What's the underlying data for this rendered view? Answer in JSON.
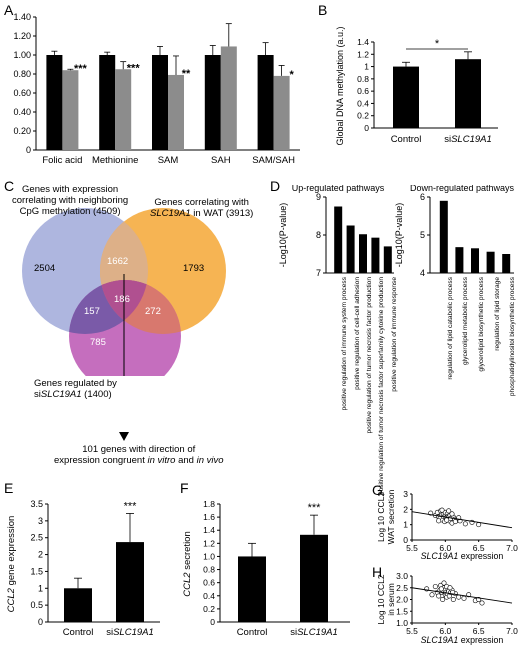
{
  "panel_labels": [
    "A",
    "B",
    "C",
    "D",
    "E",
    "F",
    "G",
    "H"
  ],
  "colors": {
    "black_bar": "#000000",
    "gray_bar": "#8c8c8c",
    "axis": "#000000",
    "venn_blue": "#aeb6df",
    "venn_orange": "#f6b04a",
    "venn_purple": "#c266ba",
    "venn_blue_orange": "#ddb088",
    "venn_blue_purple": "#7a5aa8",
    "venn_orange_purple": "#d8786e",
    "venn_center": "#b05090"
  },
  "chart_data": [
    {
      "id": "A",
      "type": "bar",
      "categories": [
        "Folic acid",
        "Methionine",
        "SAM",
        "SAH",
        "SAM/SAH"
      ],
      "series": [
        {
          "values": [
            1.0,
            1.0,
            1.0,
            1.0,
            1.0
          ],
          "errors": [
            0.04,
            0.03,
            0.09,
            0.1,
            0.13
          ],
          "color": "#000000"
        },
        {
          "values": [
            0.84,
            0.85,
            0.79,
            1.09,
            0.78
          ],
          "errors": [
            0.01,
            0.08,
            0.2,
            0.24,
            0.11
          ],
          "color": "#8c8c8c"
        }
      ],
      "significance": [
        "***",
        "***",
        "**",
        "",
        "*"
      ],
      "ylim": [
        0,
        1.4
      ],
      "yticks": [
        "0",
        "0.20",
        "0.40",
        "0.60",
        "0.80",
        "1.00",
        "1.20",
        "1.40"
      ]
    },
    {
      "id": "B",
      "type": "bar",
      "categories": [
        "Control",
        "siSLC19A1"
      ],
      "values": [
        1.0,
        1.12
      ],
      "errors": [
        0.07,
        0.12
      ],
      "ylabel": "Global DNA methylation (a.u.)",
      "ylim": [
        0,
        1.4
      ],
      "yticks": [
        "0",
        "0.2",
        "0.4",
        "0.6",
        "0.8",
        "1",
        "1.2",
        "1.4"
      ],
      "significance": "*"
    },
    {
      "id": "D1",
      "type": "bar",
      "title": "Up-regulated pathways",
      "ylabel": "-Log10(P-value)",
      "categories": [
        "positive regulation of immune system process",
        "positive regulation of cell-cell adhesion",
        "positive regulation of tumor necrosis factor production",
        "positive regulation of tumor necrosis factor superfamily cytokine production",
        "positive regulation of immune response"
      ],
      "values": [
        8.75,
        8.25,
        8.02,
        7.93,
        7.7
      ],
      "ylim": [
        7,
        9
      ],
      "yticks": [
        "7",
        "8",
        "9"
      ]
    },
    {
      "id": "D2",
      "type": "bar",
      "title": "Down-regulated pathways",
      "ylabel": "-Log10(P-value)",
      "categories": [
        "regulation of lipid catabolic process",
        "glycerolipid metabolic process",
        "glycerolipid biosynthetic process",
        "regulation of lipid storage",
        "phosphatidylinositol biosynthetic process"
      ],
      "values": [
        5.9,
        4.68,
        4.65,
        4.56,
        4.5
      ],
      "ylim": [
        4,
        6
      ],
      "yticks": [
        "4",
        "5",
        "6"
      ]
    },
    {
      "id": "E",
      "type": "bar",
      "categories": [
        "Control",
        "siSLC19A1"
      ],
      "values": [
        1.0,
        2.37
      ],
      "errors": [
        0.3,
        0.85
      ],
      "ylabel": "CCL2 gene expression",
      "ylim": [
        0,
        3.5
      ],
      "yticks": [
        "0",
        "0.5",
        "1",
        "1.5",
        "2",
        "2.5",
        "3",
        "3.5"
      ],
      "significance": "***"
    },
    {
      "id": "F",
      "type": "bar",
      "categories": [
        "Control",
        "siSLC19A1"
      ],
      "values": [
        1.0,
        1.33
      ],
      "errors": [
        0.2,
        0.3
      ],
      "ylabel": "CCL2 secretion",
      "ylim": [
        0,
        1.8
      ],
      "yticks": [
        "0",
        "0.2",
        "0.4",
        "0.6",
        "0.8",
        "1.0",
        "1.2",
        "1.4",
        "1.6",
        "1.8"
      ],
      "significance": "***"
    },
    {
      "id": "G",
      "type": "scatter",
      "xlabel": "SLC19A1 expression",
      "ylabel": "Log 10 CCL2 WAT secretion",
      "xlim": [
        5.5,
        7.0
      ],
      "ylim": [
        0,
        3
      ],
      "yticks": [
        "0",
        "1",
        "2",
        "3"
      ],
      "xticks": [
        "5.5",
        "6.0",
        "6.5",
        "7.0"
      ],
      "x": [
        5.78,
        5.85,
        5.88,
        5.9,
        5.92,
        5.93,
        5.95,
        5.96,
        5.97,
        5.98,
        5.99,
        6.0,
        6.0,
        6.01,
        6.02,
        6.03,
        6.04,
        6.05,
        6.06,
        6.07,
        6.08,
        6.1,
        6.12,
        6.14,
        6.18,
        6.22,
        6.3,
        6.4,
        6.5,
        6.1,
        6.05,
        5.95,
        6.15,
        6.2,
        6.02,
        5.9
      ],
      "y": [
        1.75,
        1.6,
        1.8,
        1.5,
        1.4,
        1.9,
        1.65,
        1.3,
        1.55,
        1.7,
        1.2,
        1.6,
        1.8,
        1.45,
        1.35,
        1.7,
        1.55,
        1.5,
        1.25,
        1.6,
        1.4,
        1.1,
        1.5,
        1.35,
        1.3,
        1.25,
        1.05,
        1.15,
        1.0,
        1.7,
        1.9,
        1.95,
        1.2,
        1.45,
        1.3,
        1.25
      ],
      "trend": [
        [
          5.5,
          1.85
        ],
        [
          7.0,
          0.8
        ]
      ]
    },
    {
      "id": "H",
      "type": "scatter",
      "xlabel": "SLC19A1 expression",
      "ylabel": "Log 10 CCL2 in serum",
      "xlim": [
        5.5,
        7.0
      ],
      "ylim": [
        1.0,
        3.0
      ],
      "yticks": [
        "1.0",
        "1.5",
        "2.0",
        "2.5",
        "3.0"
      ],
      "xticks": [
        "5.5",
        "6.0",
        "6.5",
        "7.0"
      ],
      "x": [
        5.72,
        5.8,
        5.85,
        5.88,
        5.9,
        5.92,
        5.93,
        5.95,
        5.96,
        5.97,
        5.98,
        6.0,
        6.0,
        6.01,
        6.02,
        6.03,
        6.04,
        6.05,
        6.06,
        6.08,
        6.1,
        6.12,
        6.15,
        6.2,
        6.28,
        6.35,
        6.45,
        6.5,
        6.55,
        5.98,
        6.02,
        6.07,
        5.94,
        6.11
      ],
      "y": [
        2.45,
        2.2,
        2.55,
        2.3,
        2.15,
        2.4,
        2.6,
        2.3,
        2.0,
        2.35,
        2.5,
        2.2,
        2.4,
        2.3,
        2.1,
        2.25,
        2.45,
        2.35,
        2.15,
        2.3,
        2.4,
        2.0,
        2.25,
        2.1,
        2.05,
        2.2,
        1.95,
        2.0,
        1.85,
        2.7,
        2.55,
        2.5,
        2.45,
        2.3
      ],
      "trend": [
        [
          5.5,
          2.5
        ],
        [
          7.0,
          1.85
        ]
      ]
    }
  ],
  "venn": {
    "label_left_line1": "Genes with expression",
    "label_left_line2": "correlating with neighboring",
    "label_left_line3": "CpG methylation (4509)",
    "label_right_line1": "Genes correlating with",
    "label_right_line2_gene": "SLC19A1",
    "label_right_line2_rest": " in WAT (3913)",
    "label_bottom_line1": "Genes regulated by",
    "label_bottom_line2_prefix": "si",
    "label_bottom_line2_gene": "SLC19A1",
    "label_bottom_line2_rest": " (1400)",
    "n_blue": "2504",
    "n_orange": "1793",
    "n_purple": "785",
    "n_blue_orange": "1662",
    "n_blue_purple": "157",
    "n_orange_purple": "272",
    "n_center": "186",
    "result_line1": "101 genes with direction of",
    "result_line2_prefix": "expression congruent ",
    "result_line2_italic": "in vitro",
    "result_line2_mid": " and ",
    "result_line2_italic2": "in vivo"
  }
}
